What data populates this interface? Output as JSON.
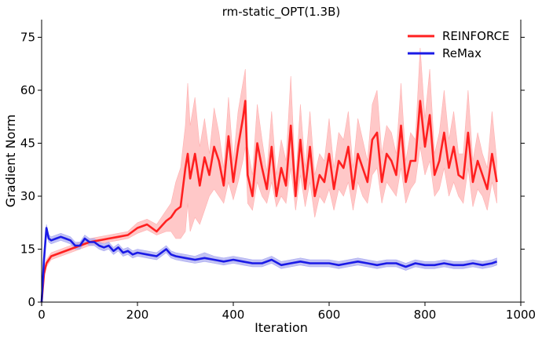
{
  "chart_data": {
    "type": "line",
    "title": "rm-static_OPT(1.3B)",
    "xlabel": "Iteration",
    "ylabel": "Gradient Norm",
    "xlim": [
      0,
      1000
    ],
    "ylim": [
      0,
      80
    ],
    "xticks": [
      0,
      200,
      400,
      600,
      800,
      1000
    ],
    "yticks": [
      0,
      15,
      30,
      45,
      60,
      75
    ],
    "grid": false,
    "legend_position": "top-right",
    "series": [
      {
        "name": "REINFORCE",
        "color": "#ff2020",
        "band_color": "#ffb0b0",
        "x": [
          0,
          5,
          10,
          20,
          40,
          60,
          80,
          100,
          120,
          140,
          160,
          180,
          200,
          220,
          240,
          260,
          270,
          280,
          290,
          300,
          305,
          310,
          320,
          330,
          340,
          350,
          360,
          370,
          380,
          390,
          400,
          410,
          420,
          425,
          430,
          440,
          450,
          460,
          470,
          480,
          490,
          500,
          510,
          520,
          530,
          540,
          550,
          560,
          570,
          580,
          590,
          600,
          610,
          620,
          630,
          640,
          650,
          660,
          670,
          680,
          690,
          700,
          710,
          720,
          730,
          740,
          750,
          760,
          770,
          780,
          790,
          800,
          810,
          820,
          830,
          840,
          850,
          860,
          870,
          880,
          890,
          900,
          910,
          920,
          930,
          940,
          950
        ],
        "y": [
          0,
          8,
          11,
          13,
          14,
          15,
          16,
          17,
          17.5,
          18,
          18.5,
          19,
          21,
          22,
          20,
          23,
          24,
          26,
          27,
          38,
          42,
          35,
          42,
          33,
          41,
          36,
          44,
          40,
          33,
          47,
          34,
          44,
          52,
          57,
          36,
          30,
          45,
          38,
          32,
          44,
          30,
          38,
          33,
          50,
          30,
          46,
          32,
          44,
          30,
          36,
          34,
          42,
          32,
          40,
          38,
          44,
          32,
          42,
          38,
          34,
          46,
          48,
          34,
          42,
          40,
          36,
          50,
          34,
          40,
          40,
          57,
          44,
          53,
          36,
          40,
          48,
          38,
          44,
          36,
          35,
          48,
          34,
          40,
          36,
          32,
          42,
          34
        ],
        "lower": [
          0,
          7,
          10,
          12,
          13,
          14,
          15,
          16,
          16.5,
          17,
          17.5,
          18,
          19.5,
          20.5,
          19,
          20,
          20,
          18,
          18,
          20,
          28,
          20,
          24,
          22,
          26,
          30,
          32,
          30,
          28,
          34,
          29,
          34,
          40,
          44,
          28,
          26,
          34,
          30,
          28,
          34,
          27,
          30,
          28,
          38,
          26,
          36,
          27,
          34,
          24,
          30,
          28,
          32,
          26,
          32,
          30,
          34,
          26,
          34,
          30,
          28,
          36,
          38,
          28,
          34,
          32,
          30,
          38,
          28,
          32,
          34,
          44,
          36,
          40,
          30,
          32,
          38,
          30,
          34,
          30,
          28,
          38,
          27,
          32,
          30,
          26,
          34,
          28
        ],
        "upper": [
          0,
          9,
          12,
          14,
          15,
          16,
          17,
          18,
          18.5,
          19,
          19.5,
          20,
          22.5,
          23.5,
          22,
          26,
          28,
          34,
          38,
          50,
          62,
          50,
          58,
          44,
          52,
          42,
          55,
          48,
          38,
          58,
          40,
          54,
          62,
          66,
          44,
          36,
          56,
          46,
          37,
          54,
          36,
          46,
          40,
          64,
          34,
          56,
          38,
          54,
          36,
          42,
          40,
          52,
          38,
          48,
          46,
          54,
          38,
          52,
          46,
          40,
          56,
          60,
          42,
          50,
          48,
          42,
          62,
          40,
          48,
          46,
          72,
          52,
          66,
          42,
          48,
          60,
          46,
          54,
          42,
          42,
          60,
          40,
          48,
          42,
          38,
          54,
          40
        ]
      },
      {
        "name": "ReMax",
        "color": "#1a1ae6",
        "band_color": "#a8a8f0",
        "x": [
          0,
          5,
          10,
          15,
          20,
          30,
          40,
          50,
          60,
          70,
          80,
          90,
          100,
          110,
          120,
          130,
          140,
          150,
          160,
          170,
          180,
          190,
          200,
          220,
          240,
          260,
          270,
          280,
          300,
          320,
          340,
          360,
          380,
          400,
          420,
          440,
          460,
          480,
          500,
          520,
          540,
          560,
          580,
          600,
          620,
          640,
          660,
          680,
          700,
          720,
          740,
          760,
          780,
          800,
          820,
          840,
          860,
          880,
          900,
          920,
          940,
          950
        ],
        "y": [
          0,
          12,
          21,
          18,
          17.5,
          18,
          18.5,
          18,
          17.5,
          16,
          16,
          18,
          17,
          17,
          16,
          15.5,
          16,
          14.5,
          15.5,
          14,
          14.5,
          13.5,
          14,
          13.5,
          13,
          15,
          13.5,
          13,
          12.5,
          12,
          12.5,
          12,
          11.5,
          12,
          11.5,
          11,
          11,
          12,
          10.5,
          11,
          11.5,
          11,
          11,
          11,
          10.5,
          11,
          11.5,
          11,
          10.5,
          11,
          11,
          10,
          11,
          10.5,
          10.5,
          11,
          10.5,
          10.5,
          11,
          10.5,
          11,
          11.5
        ],
        "lower": [
          0,
          11,
          19,
          17,
          16.5,
          17,
          17.5,
          17,
          16.5,
          15,
          15,
          17,
          16,
          16,
          15,
          14.5,
          15,
          13.5,
          14.5,
          13,
          13.5,
          12.5,
          13,
          12.5,
          12,
          14,
          12.5,
          12,
          11.5,
          11,
          11.5,
          11,
          10.5,
          11,
          10.5,
          10,
          10,
          11,
          9.5,
          10,
          10.5,
          10,
          10,
          10,
          9.5,
          10,
          10.5,
          10,
          9.5,
          10,
          10,
          9,
          10,
          9.5,
          9.5,
          10,
          9.5,
          9.5,
          10,
          9.5,
          10,
          10.5
        ],
        "upper": [
          0,
          13,
          22,
          19,
          18.5,
          19,
          19.5,
          19,
          18.5,
          17,
          17,
          19,
          18,
          18,
          17,
          16.5,
          17,
          15.5,
          16.5,
          15,
          15.5,
          14.5,
          15,
          14.5,
          14,
          16,
          14.5,
          14,
          13.5,
          13,
          14,
          13,
          12.5,
          13,
          12.5,
          12,
          12,
          13,
          11.5,
          12,
          12.5,
          12,
          12,
          12,
          11.5,
          12,
          12.5,
          12,
          11.5,
          12,
          12,
          11,
          12,
          11.5,
          11.5,
          12,
          11.5,
          11.5,
          12,
          11.5,
          12,
          12.5
        ]
      }
    ]
  }
}
